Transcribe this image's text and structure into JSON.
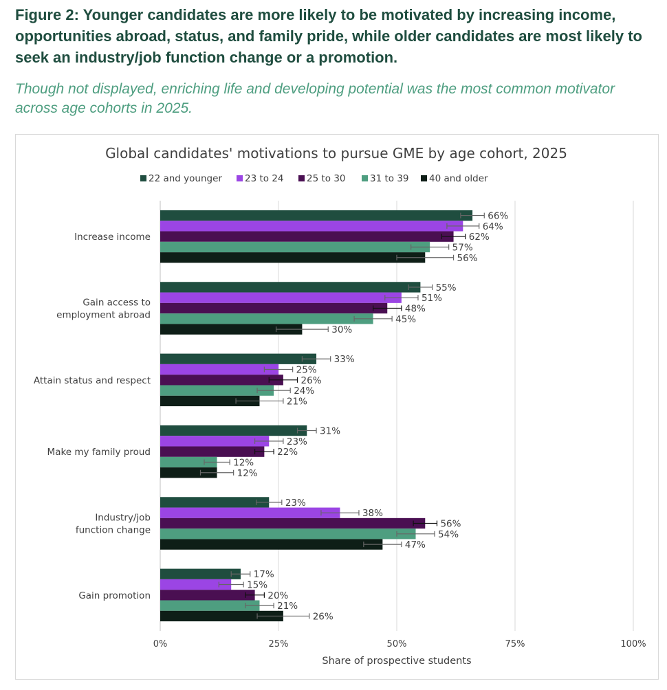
{
  "heading": "Figure 2: Younger candidates are more likely to be motivated by increasing income, opportunities abroad, status, and family pride, while older candidates are most likely to seek an industry/job function change or a promotion.",
  "subheading": "Though not displayed, enriching life and developing potential was the most common motivator across age cohorts in 2025.",
  "chart_data": {
    "type": "bar",
    "orientation": "horizontal",
    "title": "Global candidates' motivations to pursue GME by age cohort, 2025",
    "xlabel": "Share of prospective students",
    "ylabel": "",
    "xlim": [
      0,
      100
    ],
    "xticks": [
      "0%",
      "25%",
      "50%",
      "75%",
      "100%"
    ],
    "grid": true,
    "legend": "top",
    "error_bars": true,
    "categories": [
      [
        "Increase income"
      ],
      [
        "Gain access to",
        "employment abroad"
      ],
      [
        "Attain status and respect"
      ],
      [
        "Make my family proud"
      ],
      [
        "Industry/job",
        "function change"
      ],
      [
        "Gain promotion"
      ]
    ],
    "series": [
      {
        "name": "22 and younger",
        "color": "#1f4d3f",
        "values": [
          66,
          55,
          33,
          31,
          23,
          17
        ],
        "error": [
          2.5,
          2.5,
          3,
          2,
          2.7,
          2
        ]
      },
      {
        "name": "23 to 24",
        "color": "#9b45e4",
        "values": [
          64,
          51,
          25,
          23,
          38,
          15
        ],
        "error": [
          3.4,
          3.5,
          3,
          3,
          4,
          2.6
        ]
      },
      {
        "name": "25 to 30",
        "color": "#4a0f52",
        "values": [
          62,
          48,
          26,
          22,
          56,
          20
        ],
        "error": [
          2.5,
          3,
          3,
          2,
          2.5,
          2
        ]
      },
      {
        "name": "31 to 39",
        "color": "#4e9e80",
        "values": [
          57,
          45,
          24,
          12,
          54,
          21
        ],
        "error": [
          4,
          4,
          3.5,
          2.7,
          4,
          3
        ]
      },
      {
        "name": "40 and older",
        "color": "#0e1e17",
        "values": [
          56,
          30,
          21,
          12,
          47,
          26
        ],
        "error": [
          6,
          5.5,
          5,
          3.5,
          4,
          5.5
        ]
      }
    ]
  }
}
